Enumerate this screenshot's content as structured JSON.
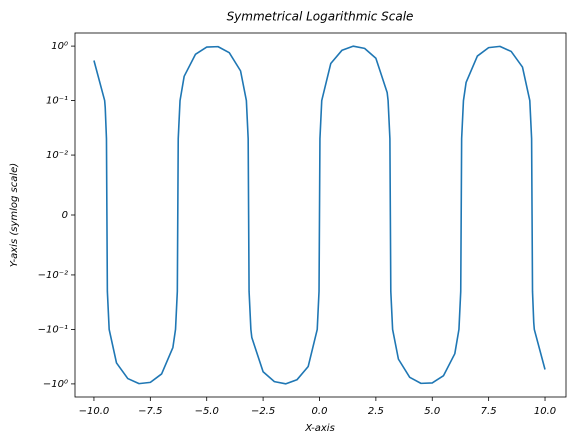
{
  "chart_data": {
    "type": "line",
    "title": "Symmetrical Logarithmic Scale",
    "x_label": "X-axis",
    "y_label": "Y-axis (symlog scale)",
    "yscale": "symlog",
    "linthresh": 0.01,
    "grid": false,
    "xlim": [
      -10.84,
      10.93
    ],
    "xticks": [
      {
        "value": -10,
        "label": "−10.0"
      },
      {
        "value": -7.5,
        "label": "−7.5"
      },
      {
        "value": -5,
        "label": "−5.0"
      },
      {
        "value": -2.5,
        "label": "−2.5"
      },
      {
        "value": 0,
        "label": "0.0"
      },
      {
        "value": 2.5,
        "label": "2.5"
      },
      {
        "value": 5,
        "label": "5.0"
      },
      {
        "value": 7.5,
        "label": "7.5"
      },
      {
        "value": 10,
        "label": "10.0"
      }
    ],
    "ylim": [
      -1.74,
      1.74
    ],
    "yticks": [
      {
        "value": -1,
        "label": "−10⁰"
      },
      {
        "value": -0.1,
        "label": "−10⁻¹"
      },
      {
        "value": -0.01,
        "label": "−10⁻²"
      },
      0,
      {
        "value": 0.01,
        "label": "10⁻²"
      },
      {
        "value": 0.1,
        "label": "10⁻¹"
      },
      {
        "value": 1,
        "label": "10⁰"
      }
    ],
    "x": [
      -10,
      -9.525,
      -9.5,
      -9.445,
      -9.425,
      -9.405,
      -9.325,
      -9,
      -8.5,
      -8,
      -7.5,
      -7,
      -6.5,
      -6.383,
      -6.303,
      -6.283,
      -6.263,
      -6.183,
      -6,
      -5.5,
      -5,
      -4.5,
      -4,
      -3.5,
      -3.242,
      -3.162,
      -3.142,
      -3.122,
      -3.042,
      -3,
      -2.5,
      -2,
      -1.5,
      -1,
      -0.5,
      -0.1,
      -0.02,
      0,
      0.02,
      0.1,
      0.5,
      1,
      1.5,
      2,
      2.5,
      3,
      3.042,
      3.122,
      3.142,
      3.162,
      3.242,
      3.5,
      4,
      4.5,
      5,
      5.5,
      6,
      6.183,
      6.263,
      6.283,
      6.303,
      6.383,
      6.5,
      7,
      7.5,
      8,
      8.5,
      9,
      9.325,
      9.405,
      9.425,
      9.445,
      9.5,
      9.525,
      10
    ],
    "series": [
      {
        "color": "#1f77b4",
        "values": [
          0.544,
          0.1,
          0.075,
          0.02,
          0,
          -0.02,
          -0.1,
          -0.412,
          -0.798,
          -0.989,
          -0.938,
          -0.657,
          -0.215,
          -0.1,
          -0.02,
          0,
          0.02,
          0.1,
          0.279,
          0.706,
          0.959,
          0.978,
          0.757,
          0.351,
          0.1,
          0.02,
          0,
          -0.02,
          -0.1,
          -0.141,
          -0.598,
          -0.909,
          -0.997,
          -0.841,
          -0.479,
          -0.1,
          -0.02,
          0,
          0.02,
          0.1,
          0.479,
          0.841,
          0.997,
          0.909,
          0.598,
          0.141,
          0.1,
          0.02,
          0,
          -0.02,
          -0.1,
          -0.351,
          -0.757,
          -0.978,
          -0.959,
          -0.706,
          -0.279,
          -0.1,
          -0.02,
          0,
          0.02,
          0.1,
          0.215,
          0.657,
          0.938,
          0.989,
          0.798,
          0.412,
          0.1,
          0.02,
          0,
          -0.02,
          -0.075,
          -0.1,
          -0.544
        ]
      }
    ]
  }
}
